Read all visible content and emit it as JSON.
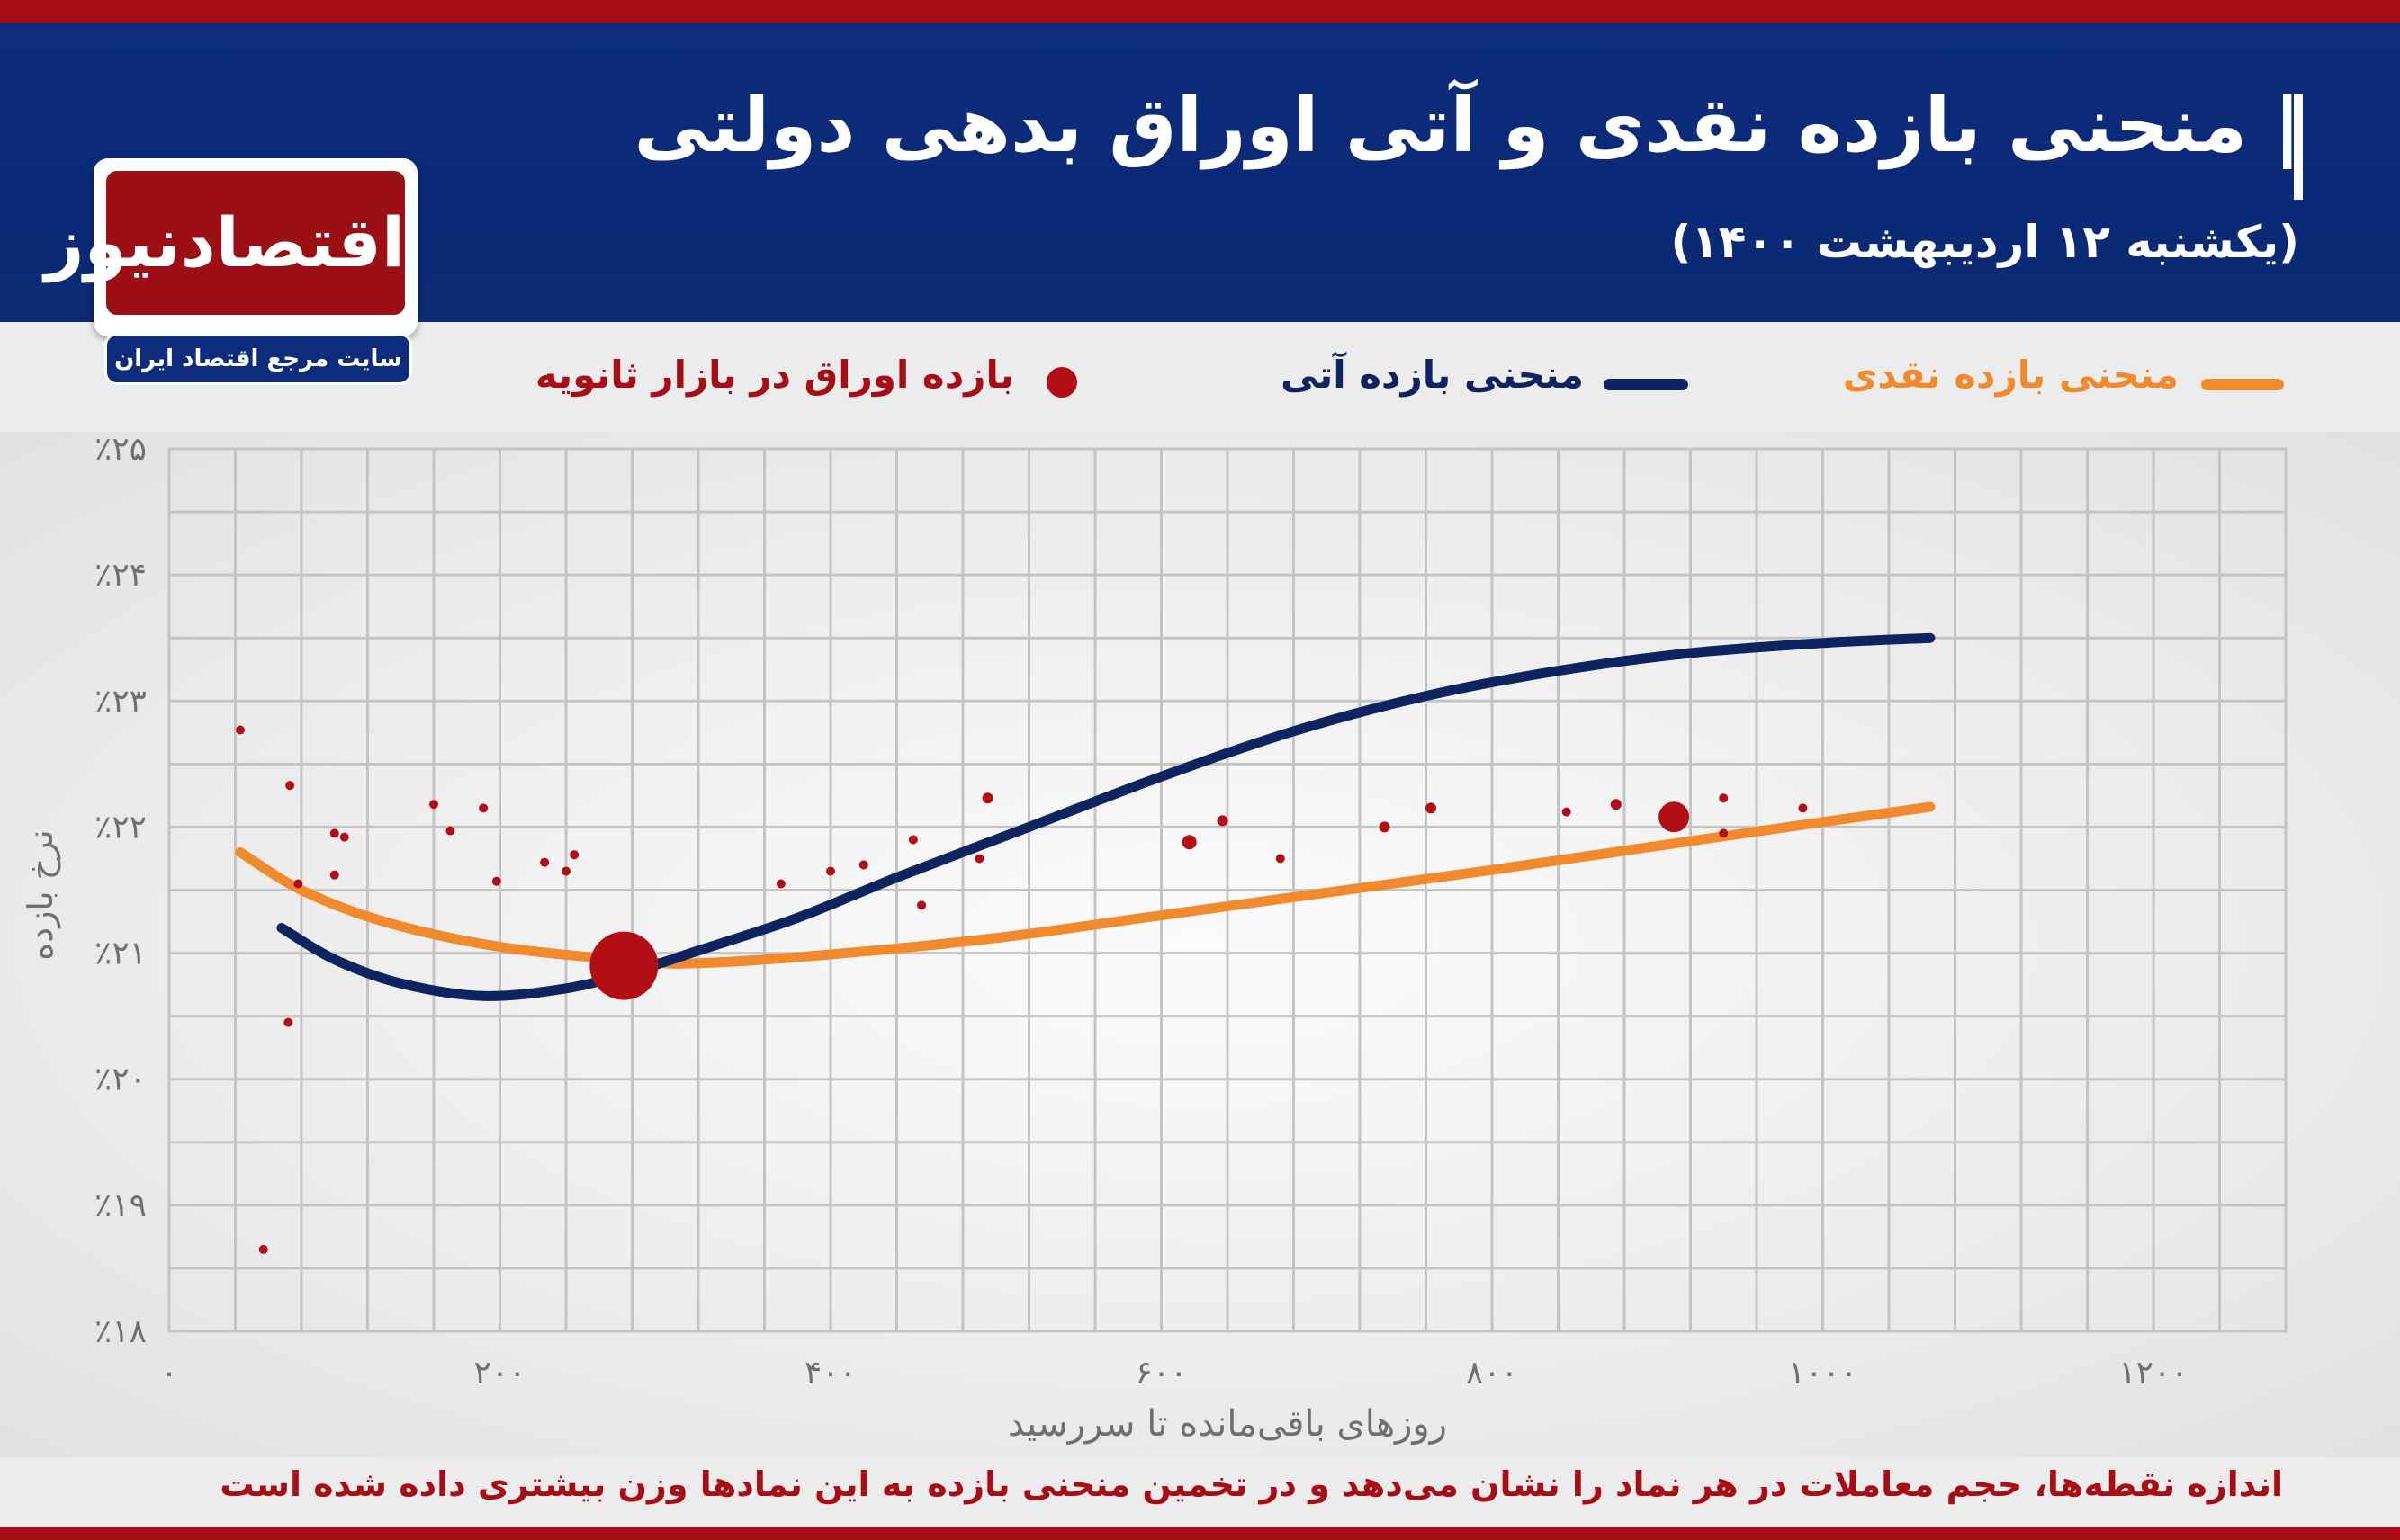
{
  "header": {
    "title": "| منحنی بازده نقدی و آتی اوراق بدهی دولتی",
    "subtitle": "(یکشنبه ۱۲ اردیبهشت ۱۴۰۰)"
  },
  "logo": {
    "name": "اقتصادنیوز",
    "tagline": "سایت مرجع اقتصاد ایران"
  },
  "legend": {
    "spot": "منحنی بازده نقدی",
    "futures": "منحنی بازده آتی",
    "bonds": "بازده اوراق در بازار ثانویه"
  },
  "footer_note": "اندازه نقطه‌ها، حجم معاملات در هر نماد را نشان می‌دهد و در تخمین منحنی بازده به این نمادها وزن بیشتری داده شده است",
  "colors": {
    "header_blue": "#0b2b78",
    "brand_red": "#a80d15",
    "spot_orange": "#f08a2c",
    "futures_navy": "#0e2460",
    "dot_red": "#b30d16"
  },
  "chart_data": {
    "type": "scatter",
    "xlabel": "روزهای باقی‌مانده تا سررسید",
    "ylabel": "نرخ بازده",
    "xlim": [
      0,
      1280
    ],
    "ylim": [
      18,
      25
    ],
    "x_ticks": [
      {
        "v": 0,
        "label": "۰"
      },
      {
        "v": 200,
        "label": "۲۰۰"
      },
      {
        "v": 400,
        "label": "۴۰۰"
      },
      {
        "v": 600,
        "label": "۶۰۰"
      },
      {
        "v": 800,
        "label": "۸۰۰"
      },
      {
        "v": 1000,
        "label": "۱۰۰۰"
      },
      {
        "v": 1200,
        "label": "۱۲۰۰"
      }
    ],
    "y_ticks": [
      {
        "v": 18,
        "label": "٪۱۸"
      },
      {
        "v": 19,
        "label": "٪۱۹"
      },
      {
        "v": 20,
        "label": "٪۲۰"
      },
      {
        "v": 21,
        "label": "٪۲۱"
      },
      {
        "v": 22,
        "label": "٪۲۲"
      },
      {
        "v": 23,
        "label": "٪۲۳"
      },
      {
        "v": 24,
        "label": "٪۲۴"
      },
      {
        "v": 25,
        "label": "٪۲۵"
      }
    ],
    "grid": true,
    "series": [
      {
        "name": "منحنی بازده نقدی",
        "type": "line",
        "color": "#f08a2c",
        "points": [
          [
            43,
            21.8
          ],
          [
            80,
            21.5
          ],
          [
            130,
            21.25
          ],
          [
            200,
            21.05
          ],
          [
            280,
            20.94
          ],
          [
            320,
            20.92
          ],
          [
            400,
            20.99
          ],
          [
            500,
            21.12
          ],
          [
            600,
            21.3
          ],
          [
            700,
            21.48
          ],
          [
            800,
            21.66
          ],
          [
            900,
            21.85
          ],
          [
            1000,
            22.04
          ],
          [
            1065,
            22.16
          ]
        ]
      },
      {
        "name": "منحنی بازده آتی",
        "type": "line",
        "color": "#0e2460",
        "points": [
          [
            68,
            21.2
          ],
          [
            100,
            20.95
          ],
          [
            140,
            20.76
          ],
          [
            190,
            20.66
          ],
          [
            240,
            20.72
          ],
          [
            280,
            20.85
          ],
          [
            320,
            21.02
          ],
          [
            380,
            21.28
          ],
          [
            440,
            21.6
          ],
          [
            520,
            22.0
          ],
          [
            600,
            22.4
          ],
          [
            680,
            22.76
          ],
          [
            760,
            23.04
          ],
          [
            840,
            23.24
          ],
          [
            920,
            23.38
          ],
          [
            1000,
            23.46
          ],
          [
            1065,
            23.5
          ]
        ]
      },
      {
        "name": "بازده اوراق در بازار ثانویه",
        "type": "scatter",
        "color": "#b30d16",
        "points": [
          {
            "x": 43,
            "y": 22.77,
            "r": 5
          },
          {
            "x": 73,
            "y": 22.33,
            "r": 5
          },
          {
            "x": 78,
            "y": 21.55,
            "r": 5
          },
          {
            "x": 72,
            "y": 20.45,
            "r": 5
          },
          {
            "x": 57,
            "y": 18.65,
            "r": 5
          },
          {
            "x": 100,
            "y": 21.95,
            "r": 5
          },
          {
            "x": 106,
            "y": 21.92,
            "r": 5
          },
          {
            "x": 100,
            "y": 21.62,
            "r": 5
          },
          {
            "x": 160,
            "y": 22.18,
            "r": 5
          },
          {
            "x": 170,
            "y": 21.97,
            "r": 5
          },
          {
            "x": 190,
            "y": 22.15,
            "r": 5
          },
          {
            "x": 198,
            "y": 21.57,
            "r": 5
          },
          {
            "x": 227,
            "y": 21.72,
            "r": 5
          },
          {
            "x": 240,
            "y": 21.65,
            "r": 5
          },
          {
            "x": 245,
            "y": 21.78,
            "r": 5
          },
          {
            "x": 275,
            "y": 20.9,
            "r": 38
          },
          {
            "x": 370,
            "y": 21.55,
            "r": 5
          },
          {
            "x": 400,
            "y": 21.65,
            "r": 5
          },
          {
            "x": 420,
            "y": 21.7,
            "r": 5
          },
          {
            "x": 450,
            "y": 21.9,
            "r": 5
          },
          {
            "x": 455,
            "y": 21.38,
            "r": 5
          },
          {
            "x": 490,
            "y": 21.75,
            "r": 5
          },
          {
            "x": 495,
            "y": 22.23,
            "r": 6
          },
          {
            "x": 617,
            "y": 21.88,
            "r": 8
          },
          {
            "x": 637,
            "y": 22.05,
            "r": 6
          },
          {
            "x": 672,
            "y": 21.75,
            "r": 5
          },
          {
            "x": 735,
            "y": 22.0,
            "r": 6
          },
          {
            "x": 763,
            "y": 22.15,
            "r": 6
          },
          {
            "x": 845,
            "y": 22.12,
            "r": 5
          },
          {
            "x": 875,
            "y": 22.18,
            "r": 6
          },
          {
            "x": 910,
            "y": 22.08,
            "r": 17
          },
          {
            "x": 940,
            "y": 22.23,
            "r": 5
          },
          {
            "x": 940,
            "y": 21.95,
            "r": 5
          },
          {
            "x": 988,
            "y": 22.15,
            "r": 5
          }
        ]
      }
    ]
  }
}
